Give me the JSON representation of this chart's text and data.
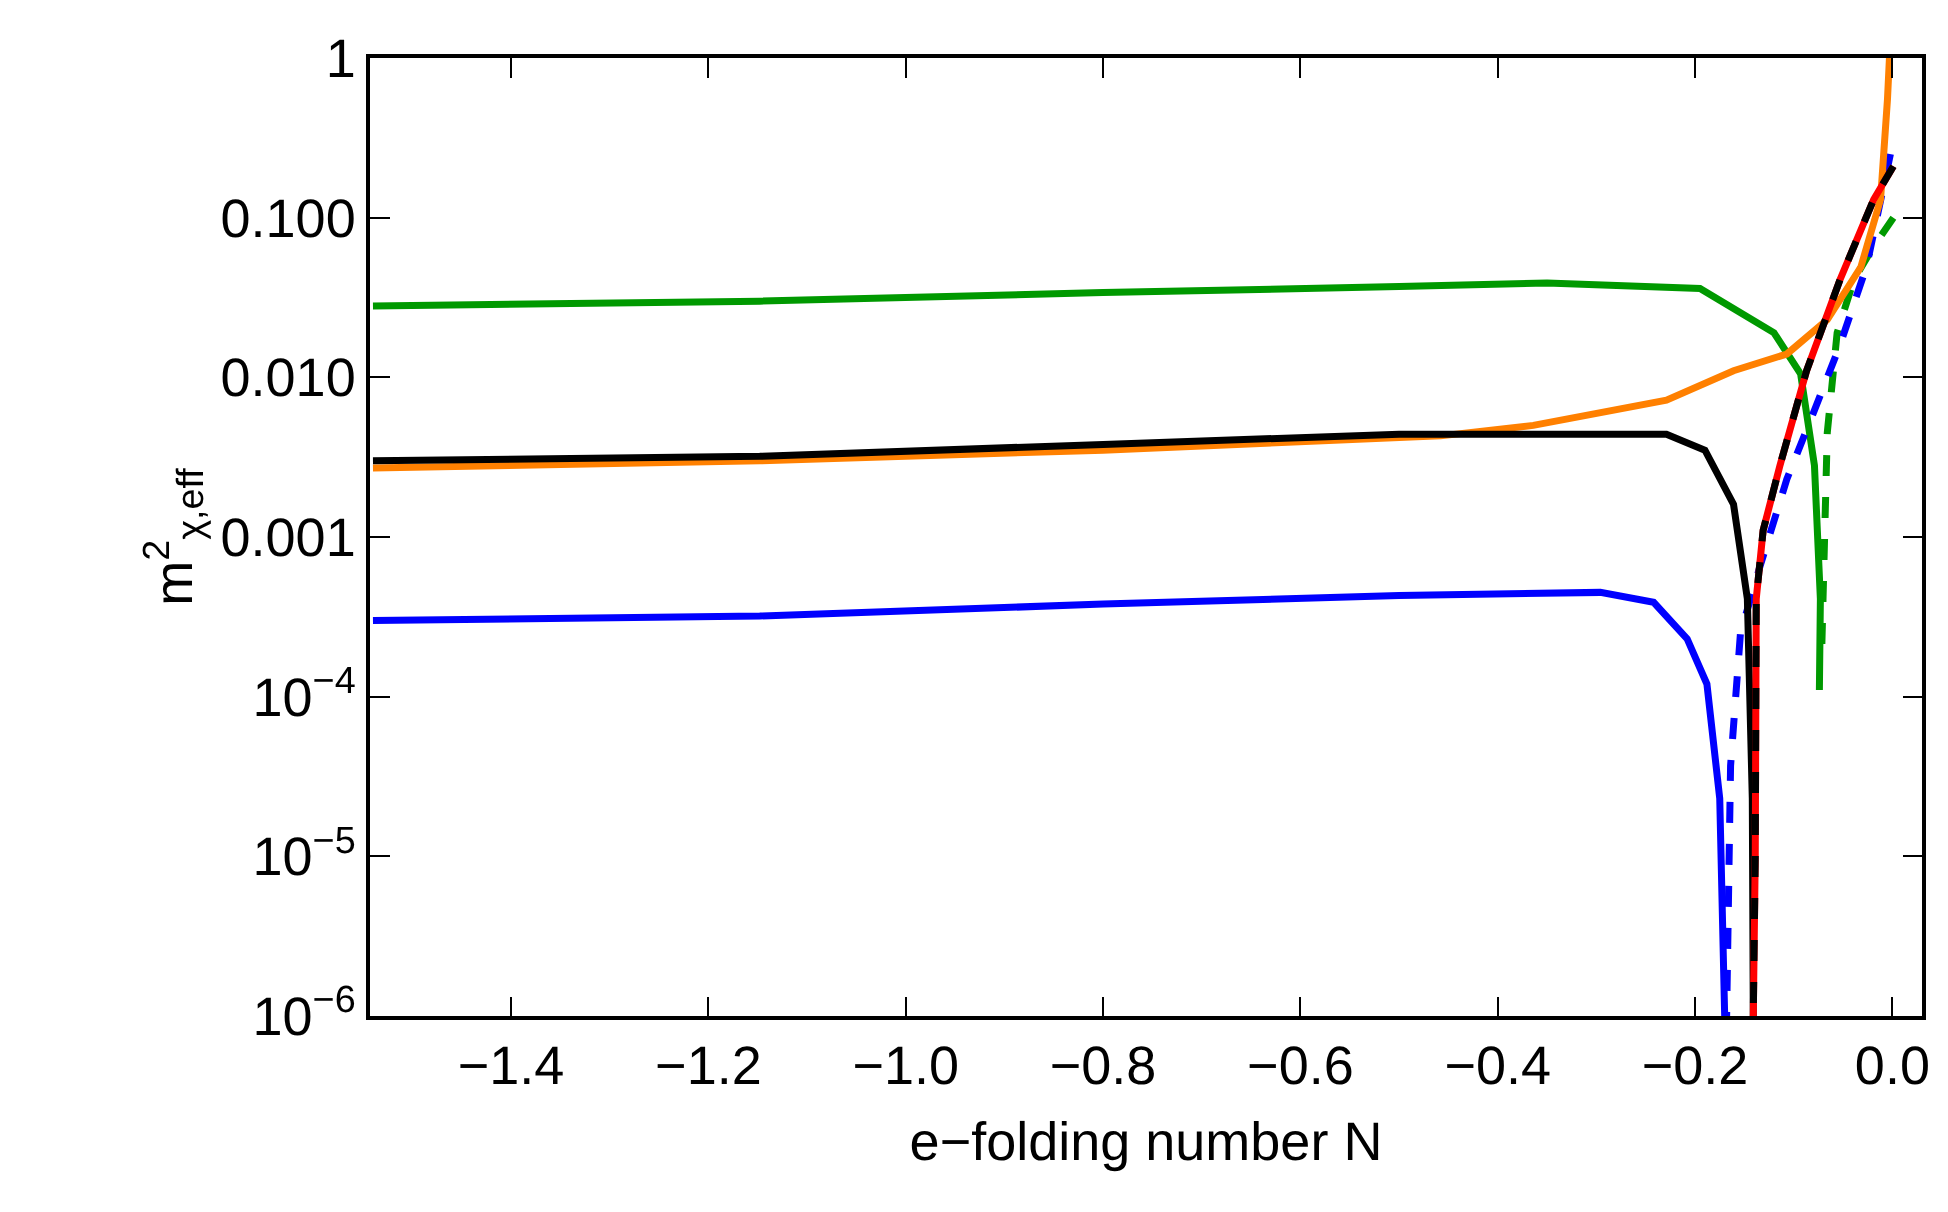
{
  "chart_data": {
    "type": "line",
    "xlabel": "e−folding number N",
    "ylabel": "m$^{2}$$_{χ,eff}$",
    "log": "y",
    "grid": false,
    "marker": "none",
    "xlim": [
      -1.543,
      0.03
    ],
    "ylim": [
      1e-06,
      1
    ],
    "xticks": [
      {
        "value": -1.4,
        "label": "−1.4"
      },
      {
        "value": -1.2,
        "label": "−1.2"
      },
      {
        "value": -1.0,
        "label": "−1.0"
      },
      {
        "value": -0.8,
        "label": "−0.8"
      },
      {
        "value": -0.6,
        "label": "−0.6"
      },
      {
        "value": -0.4,
        "label": "−0.4"
      },
      {
        "value": -0.2,
        "label": "−0.2"
      },
      {
        "value": 0,
        "label": "0.0"
      }
    ],
    "yticks": [
      {
        "value": 1e-06,
        "label": "10$^{−6}$"
      },
      {
        "value": 1e-05,
        "label": "10$^{−5}$"
      },
      {
        "value": 0.0001,
        "label": "10$^{−4}$"
      },
      {
        "value": 0.001,
        "label": "0.001"
      },
      {
        "value": 0.01,
        "label": "0.010"
      },
      {
        "value": 0.1,
        "label": "0.100"
      },
      1
    ],
    "series": [
      {
        "color": "#009900",
        "line_style": "solid",
        "x": [
          -1.54,
          -1.148,
          -0.8,
          -0.5,
          -0.35,
          -0.195,
          -0.12,
          -0.093,
          -0.079,
          -0.073,
          -0.074
        ],
        "values": [
          0.028,
          0.03,
          0.034,
          0.037,
          0.039,
          0.036,
          0.019,
          0.0105,
          0.0028,
          0.00041,
          0.00011
        ]
      },
      {
        "color": "#009900",
        "line_style": "dashed",
        "x": [
          0.001,
          -0.019,
          -0.039,
          -0.056,
          -0.066,
          -0.072
        ],
        "values": [
          0.1,
          0.066,
          0.041,
          0.019,
          0.0045,
          0.00016
        ]
      },
      {
        "color": "#0000ff",
        "line_style": "solid",
        "x": [
          -1.54,
          -1.148,
          -0.8,
          -0.5,
          -0.296,
          -0.242,
          -0.208,
          -0.188,
          -0.175,
          -0.17
        ],
        "values": [
          0.0003,
          0.00032,
          0.00038,
          0.00043,
          0.00045,
          0.00039,
          0.00023,
          0.00012,
          2.3e-05,
          1e-06
        ]
      },
      {
        "color": "#0000ff",
        "line_style": "dashed",
        "x": [
          -0.002,
          -0.026,
          -0.053,
          -0.08,
          -0.107,
          -0.134,
          -0.154,
          -0.164,
          -0.168
        ],
        "values": [
          0.25,
          0.05,
          0.016,
          0.006,
          0.0023,
          0.00066,
          0.00025,
          3.7e-05,
          1e-06
        ]
      },
      {
        "color": "#ff8000",
        "line_style": "solid",
        "x": [
          -1.54,
          -1.148,
          -0.8,
          -0.458,
          -0.364,
          -0.229,
          -0.161,
          -0.107,
          -0.066,
          -0.032,
          -0.012,
          -0.005,
          -0.003
        ],
        "values": [
          0.0027,
          0.003,
          0.0035,
          0.0043,
          0.005,
          0.0072,
          0.011,
          0.014,
          0.023,
          0.049,
          0.13,
          0.55,
          1
        ]
      },
      {
        "color": "#000000",
        "line_style": "solid",
        "x": [
          -1.54,
          -1.148,
          -0.8,
          -0.5,
          -0.229,
          -0.19,
          -0.161,
          -0.147,
          -0.142,
          -0.141
        ],
        "values": [
          0.003,
          0.0032,
          0.0038,
          0.0044,
          0.0044,
          0.0035,
          0.0016,
          0.00041,
          2.3e-05,
          1e-06
        ]
      },
      {
        "color": "#ff0000",
        "line_style": "solid",
        "x": [
          -0.141,
          -0.139,
          -0.138,
          -0.131,
          -0.114,
          -0.087,
          -0.053,
          -0.019,
          0.001
        ],
        "values": [
          1e-06,
          1e-05,
          0.00041,
          0.0011,
          0.0028,
          0.011,
          0.041,
          0.13,
          0.21
        ]
      },
      {
        "color": "#000000",
        "line_style": "dashed",
        "x": [
          0.001,
          -0.019,
          -0.053,
          -0.087,
          -0.114,
          -0.131,
          -0.138,
          -0.139,
          -0.141
        ],
        "values": [
          0.21,
          0.13,
          0.041,
          0.011,
          0.0028,
          0.0011,
          0.00041,
          1e-05,
          1e-06
        ]
      }
    ]
  }
}
